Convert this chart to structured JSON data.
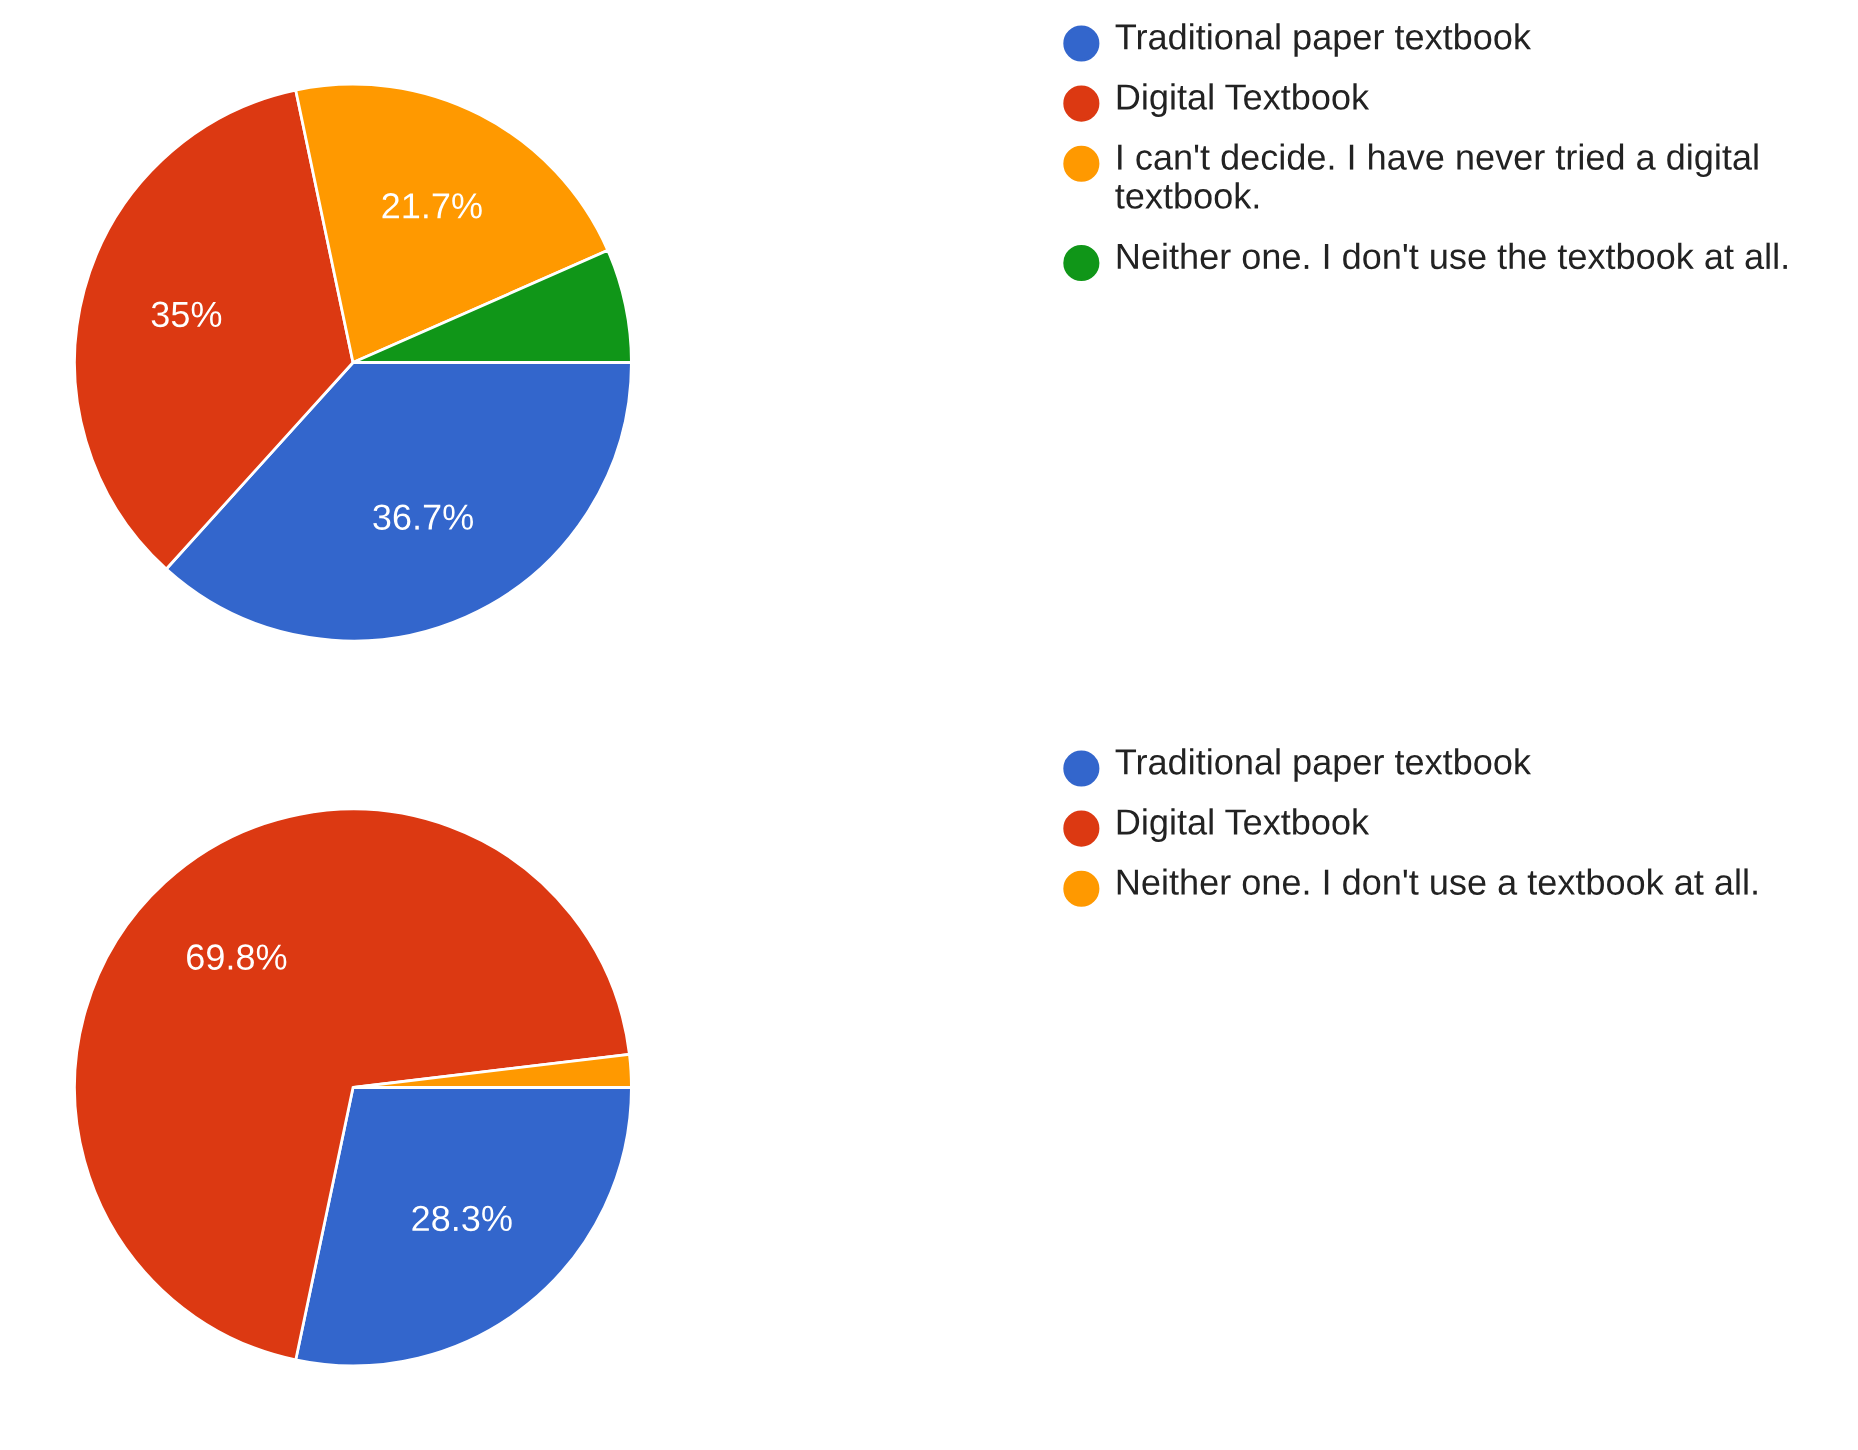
{
  "chart_data": [
    {
      "type": "pie",
      "categories": [
        "Traditional paper textbook",
        "Digital Textbook",
        "I can't decide. I have never tried a digital textbook.",
        "Neither one. I don't use the textbook at all."
      ],
      "values": [
        36.7,
        35,
        21.7,
        6.6
      ],
      "colors": [
        "#3366cc",
        "#dc3912",
        "#ff9900",
        "#109618"
      ],
      "value_labels": [
        "36.7%",
        "35%",
        "21.7%",
        null
      ],
      "legend": "right"
    },
    {
      "type": "pie",
      "categories": [
        "Traditional paper textbook",
        "Digital Textbook",
        "Neither one. I don't use a textbook at all."
      ],
      "values": [
        28.3,
        69.8,
        1.9
      ],
      "colors": [
        "#3366cc",
        "#dc3912",
        "#ff9900"
      ],
      "value_labels": [
        "28.3%",
        "69.8%",
        null
      ],
      "legend": "right"
    }
  ]
}
